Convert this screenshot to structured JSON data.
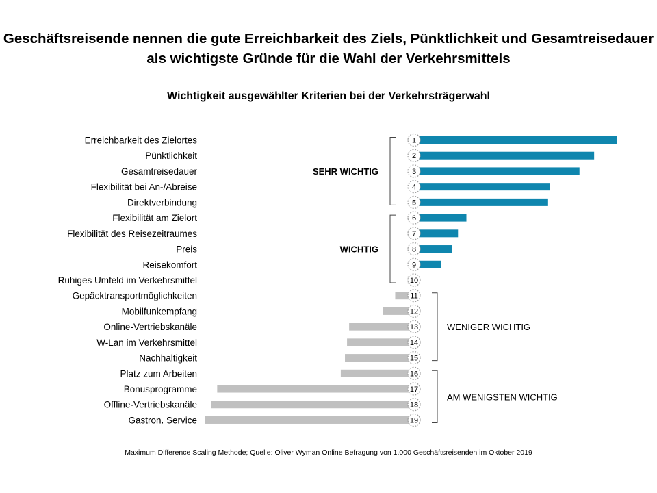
{
  "title": "Geschäftsreisende nennen die gute Erreichbarkeit des Ziels, Pünktlichkeit und Gesamtreisedauer als wichtigste Gründe für die Wahl der Verkehrsmittels",
  "footnote": "Maximum Difference Scaling Methode; Quelle: Oliver Wyman Online Befragung von 1.000 Geschäftsreisenden im Oktober 2019",
  "colors": {
    "positive": "#0F86AE",
    "negative": "#C0C0C0",
    "bracket": "#444444"
  },
  "chart_data": {
    "type": "bar",
    "orientation": "horizontal",
    "title": "Wichtigkeit ausgewählter Kriterien bei der Verkehrsträgerwahl",
    "xlabel": "",
    "ylabel": "",
    "xlim": [
      -100,
      97
    ],
    "grid": false,
    "categories": [
      "Erreichbarkeit des Zielortes",
      "Pünktlichkeit",
      "Gesamtreisedauer",
      "Flexibilität bei An-/Abreise",
      "Direktverbindung",
      "Flexibilität am Zielort",
      "Flexibilität des Reisezeitraumes",
      "Preis",
      "Reisekomfort",
      "Ruhiges Umfeld im Verkehrsmittel",
      "Gepäcktransportmöglichkeiten",
      "Mobilfunkempfang",
      "Online-Vertriebskanäle",
      "W-Lan im Verkehrsmittel",
      "Nachhaltigkeit",
      "Platz zum Arbeiten",
      "Bonusprogramme",
      "Offline-Vertriebskanäle",
      "Gastron. Service"
    ],
    "ranks": [
      "1",
      "2",
      "3",
      "4",
      "5",
      "6",
      "7",
      "8",
      "9",
      "10",
      "11",
      "12",
      "13",
      "14",
      "15",
      "16",
      "17",
      "18",
      "19"
    ],
    "values": [
      97,
      86,
      79,
      65,
      64,
      25,
      21,
      18,
      13,
      -3,
      -9,
      -15,
      -31,
      -32,
      -33,
      -35,
      -94,
      -97,
      -100
    ],
    "groups": [
      {
        "label": "SEHR WICHTIG",
        "from": 0,
        "to": 4,
        "side": "left"
      },
      {
        "label": "WICHTIG",
        "from": 5,
        "to": 9,
        "side": "left"
      },
      {
        "label": "WENIGER WICHTIG",
        "from": 10,
        "to": 14,
        "side": "right"
      },
      {
        "label": "AM WENIGSTEN WICHTIG",
        "from": 15,
        "to": 18,
        "side": "right"
      }
    ]
  }
}
